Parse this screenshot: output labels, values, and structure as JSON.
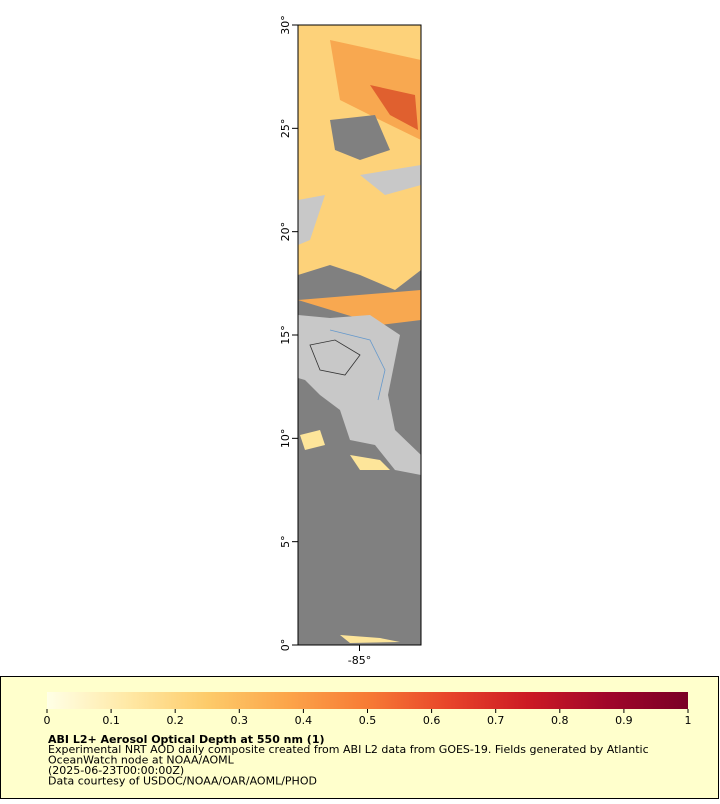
{
  "map": {
    "ylim": [
      0,
      30
    ],
    "yticks": [
      {
        "value": 0,
        "label": "0°"
      },
      {
        "value": 5,
        "label": "5°"
      },
      {
        "value": 10,
        "label": "10°"
      },
      {
        "value": 15,
        "label": "15°"
      },
      {
        "value": 20,
        "label": "20°"
      },
      {
        "value": 25,
        "label": "25°"
      },
      {
        "value": 30,
        "label": "30°"
      }
    ],
    "xlim": [
      -88,
      -82
    ],
    "xticks": [
      {
        "value": -85,
        "label": "-85°"
      }
    ]
  },
  "colorbar": {
    "lim": [
      0,
      1
    ],
    "ticks": [
      0,
      0.1,
      0.2,
      0.3,
      0.4,
      0.5,
      0.6,
      0.7,
      0.8,
      0.9,
      1
    ],
    "colors": [
      "#ffffe6",
      "#ffe9a6",
      "#fdcb6a",
      "#fca54a",
      "#f77b35",
      "#e8452a",
      "#cc1a24",
      "#a0062a",
      "#7a0025"
    ]
  },
  "legend": {
    "title": "ABI L2+ Aerosol Optical Depth at 550 nm (1)",
    "lines": [
      "Experimental NRT AOD daily composite created from ABI L2 data from GOES-19. Fields generated by Atlantic",
      "OceanWatch node at NOAA/AOML",
      "(2025-06-23T00:00:00Z)",
      "Data courtesy of USDOC/NOAA/OAR/AOML/PHOD"
    ]
  }
}
